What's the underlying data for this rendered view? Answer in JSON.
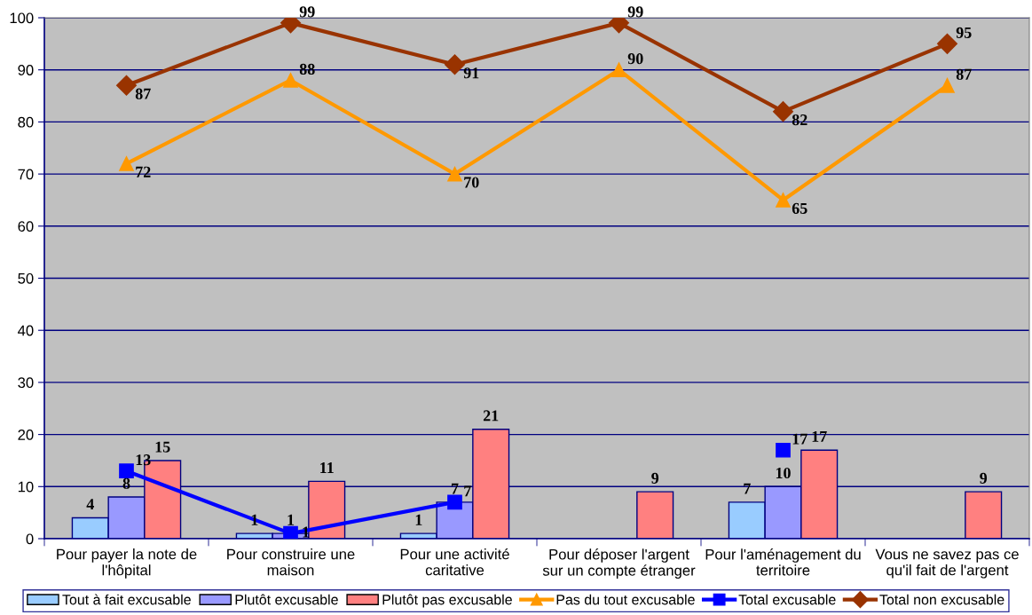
{
  "chart_data": {
    "type": "bar",
    "categories": [
      "Pour payer la note de\nl'hôpital",
      "Pour construire une\nmaison",
      "Pour une activité\ncaritative",
      "Pour déposer l'argent\nsur un compte étranger",
      "Pour l'aménagement du\nterritoire",
      "Vous ne savez pas ce\nqu'il fait de l'argent"
    ],
    "series": [
      {
        "name": "Tout à fait excusable",
        "color": "#99ccff",
        "values": [
          4,
          1,
          1,
          null,
          7,
          null
        ]
      },
      {
        "name": "Plutôt excusable",
        "color": "#9999ff",
        "values": [
          8,
          1,
          7,
          null,
          10,
          null
        ]
      },
      {
        "name": "Plutôt pas excusable",
        "color": "#ff8080",
        "values": [
          15,
          11,
          21,
          9,
          17,
          9
        ]
      },
      {
        "name": "Pas du tout excusable",
        "type": "line",
        "color": "#ff9900",
        "marker": "triangle",
        "line_style": "solid",
        "values": [
          72,
          88,
          70,
          90,
          65,
          87
        ]
      },
      {
        "name": "Total excusable",
        "type": "line",
        "color": "#0000ff",
        "marker": "square",
        "line_style": "solid",
        "values": [
          13,
          1,
          7,
          null,
          17,
          null
        ]
      },
      {
        "name": "Total non excusable",
        "type": "line",
        "color": "#993300",
        "marker": "diamond",
        "line_style": "solid",
        "values": [
          87,
          99,
          91,
          99,
          82,
          95
        ]
      }
    ],
    "ylim": [
      0,
      100
    ],
    "yticks": [
      0,
      10,
      20,
      30,
      40,
      50,
      60,
      70,
      80,
      90,
      100
    ],
    "grid": "y",
    "legend": "bottom",
    "data_labels": true
  }
}
